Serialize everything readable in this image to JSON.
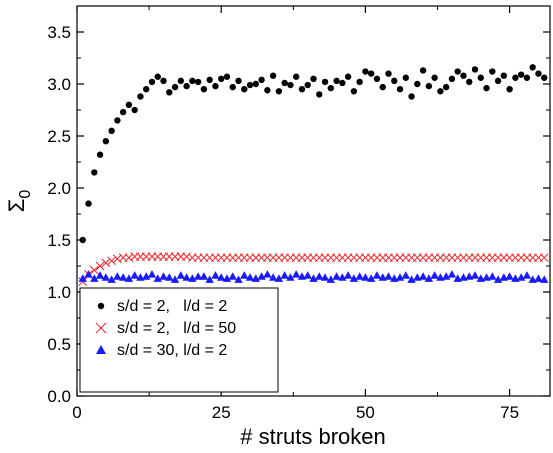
{
  "chart_data": {
    "type": "scatter",
    "title": "",
    "xlabel": "# struts broken",
    "ylabel": "Σ",
    "ylabel_subscript": "0",
    "xlim": [
      0,
      82
    ],
    "ylim": [
      0.0,
      3.75
    ],
    "xticks": [
      0,
      25,
      50,
      75
    ],
    "xtick_labels": [
      "0",
      "25",
      "50",
      "75"
    ],
    "yticks": [
      0.0,
      0.5,
      1.0,
      1.5,
      2.0,
      2.5,
      3.0,
      3.5
    ],
    "ytick_labels": [
      "0.0",
      "0.5",
      "1.0",
      "1.5",
      "2.0",
      "2.5",
      "3.0",
      "3.5"
    ],
    "grid": false,
    "legend_position": "bottom-left",
    "series": [
      {
        "name": "s/d = 2,   l/d = 2",
        "marker": "circle",
        "color": "#000000",
        "x": [
          1,
          2,
          3,
          4,
          5,
          6,
          7,
          8,
          9,
          10,
          11,
          12,
          13,
          14,
          15,
          16,
          17,
          18,
          19,
          20,
          21,
          22,
          23,
          24,
          25,
          26,
          27,
          28,
          29,
          30,
          31,
          32,
          33,
          34,
          35,
          36,
          37,
          38,
          39,
          40,
          41,
          42,
          43,
          44,
          45,
          46,
          47,
          48,
          49,
          50,
          51,
          52,
          53,
          54,
          55,
          56,
          57,
          58,
          59,
          60,
          61,
          62,
          63,
          64,
          65,
          66,
          67,
          68,
          69,
          70,
          71,
          72,
          73,
          74,
          75,
          76,
          77,
          78,
          79,
          80,
          81
        ],
        "y": [
          1.5,
          1.85,
          2.15,
          2.32,
          2.45,
          2.55,
          2.65,
          2.73,
          2.8,
          2.75,
          2.88,
          2.95,
          3.02,
          3.07,
          3.03,
          2.92,
          2.97,
          3.03,
          2.98,
          3.03,
          3.02,
          2.95,
          3.04,
          2.98,
          3.05,
          3.07,
          2.97,
          3.03,
          2.95,
          2.99,
          3.0,
          3.04,
          2.94,
          3.08,
          2.93,
          3.01,
          2.99,
          3.07,
          2.95,
          2.99,
          3.05,
          2.9,
          3.02,
          2.96,
          3.03,
          3.01,
          3.07,
          2.93,
          3.02,
          3.12,
          3.1,
          3.05,
          2.97,
          3.1,
          3.03,
          2.95,
          3.06,
          2.88,
          3.0,
          3.13,
          2.98,
          3.06,
          2.93,
          2.97,
          3.05,
          3.12,
          3.08,
          3.02,
          3.14,
          3.06,
          2.96,
          3.12,
          3.03,
          3.08,
          2.95,
          3.06,
          3.09,
          3.06,
          3.16,
          3.1,
          3.06
        ]
      },
      {
        "name": "s/d = 2,   l/d = 50",
        "marker": "cross",
        "color": "#e8262b",
        "x": [
          1,
          2,
          3,
          4,
          5,
          6,
          7,
          8,
          9,
          10,
          11,
          12,
          13,
          14,
          15,
          16,
          17,
          18,
          19,
          20,
          21,
          22,
          23,
          24,
          25,
          26,
          27,
          28,
          29,
          30,
          31,
          32,
          33,
          34,
          35,
          36,
          37,
          38,
          39,
          40,
          41,
          42,
          43,
          44,
          45,
          46,
          47,
          48,
          49,
          50,
          51,
          52,
          53,
          54,
          55,
          56,
          57,
          58,
          59,
          60,
          61,
          62,
          63,
          64,
          65,
          66,
          67,
          68,
          69,
          70,
          71,
          72,
          73,
          74,
          75,
          76,
          77,
          78,
          79,
          80,
          81
        ],
        "y": [
          1.1,
          1.17,
          1.21,
          1.25,
          1.28,
          1.3,
          1.32,
          1.33,
          1.33,
          1.34,
          1.34,
          1.34,
          1.34,
          1.34,
          1.34,
          1.34,
          1.34,
          1.34,
          1.34,
          1.33,
          1.33,
          1.33,
          1.33,
          1.33,
          1.33,
          1.33,
          1.33,
          1.33,
          1.33,
          1.33,
          1.33,
          1.33,
          1.33,
          1.33,
          1.33,
          1.33,
          1.33,
          1.33,
          1.33,
          1.33,
          1.33,
          1.33,
          1.33,
          1.33,
          1.33,
          1.33,
          1.33,
          1.33,
          1.33,
          1.33,
          1.33,
          1.33,
          1.33,
          1.33,
          1.33,
          1.33,
          1.33,
          1.33,
          1.33,
          1.33,
          1.33,
          1.33,
          1.33,
          1.33,
          1.33,
          1.33,
          1.33,
          1.33,
          1.33,
          1.33,
          1.33,
          1.33,
          1.33,
          1.33,
          1.33,
          1.33,
          1.33,
          1.33,
          1.33,
          1.33,
          1.33
        ]
      },
      {
        "name": "s/d = 30, l/d = 2",
        "marker": "triangle",
        "color": "#1a1aff",
        "x": [
          1,
          2,
          3,
          4,
          5,
          6,
          7,
          8,
          9,
          10,
          11,
          12,
          13,
          14,
          15,
          16,
          17,
          18,
          19,
          20,
          21,
          22,
          23,
          24,
          25,
          26,
          27,
          28,
          29,
          30,
          31,
          32,
          33,
          34,
          35,
          36,
          37,
          38,
          39,
          40,
          41,
          42,
          43,
          44,
          45,
          46,
          47,
          48,
          49,
          50,
          51,
          52,
          53,
          54,
          55,
          56,
          57,
          58,
          59,
          60,
          61,
          62,
          63,
          64,
          65,
          66,
          67,
          68,
          69,
          70,
          71,
          72,
          73,
          74,
          75,
          76,
          77,
          78,
          79,
          80,
          81
        ],
        "y": [
          1.13,
          1.17,
          1.13,
          1.16,
          1.14,
          1.12,
          1.15,
          1.14,
          1.13,
          1.16,
          1.14,
          1.15,
          1.17,
          1.13,
          1.15,
          1.14,
          1.12,
          1.16,
          1.14,
          1.13,
          1.15,
          1.15,
          1.12,
          1.16,
          1.14,
          1.13,
          1.15,
          1.12,
          1.16,
          1.14,
          1.13,
          1.15,
          1.17,
          1.14,
          1.13,
          1.16,
          1.14,
          1.17,
          1.15,
          1.16,
          1.13,
          1.15,
          1.14,
          1.12,
          1.15,
          1.14,
          1.16,
          1.13,
          1.15,
          1.14,
          1.13,
          1.16,
          1.14,
          1.15,
          1.13,
          1.14,
          1.16,
          1.12,
          1.14,
          1.15,
          1.13,
          1.16,
          1.14,
          1.15,
          1.17,
          1.13,
          1.14,
          1.15,
          1.16,
          1.13,
          1.14,
          1.15,
          1.12,
          1.14,
          1.15,
          1.13,
          1.14,
          1.16,
          1.12,
          1.13,
          1.12
        ]
      }
    ]
  }
}
